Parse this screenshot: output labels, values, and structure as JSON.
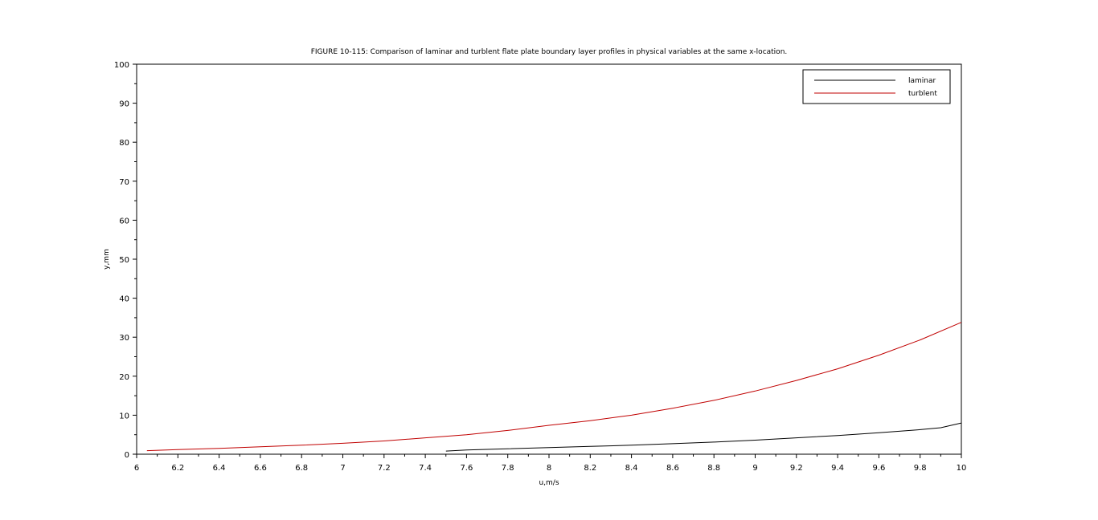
{
  "chart_data": {
    "type": "line",
    "title": "FIGURE 10-115: Comparison of laminar and turblent flate plate boundary layer profiles in physical variables at the same x-location.",
    "xlabel": "u,m/s",
    "ylabel": "y,mm",
    "xlim": [
      6,
      10
    ],
    "ylim": [
      0,
      100
    ],
    "x_ticks": [
      "6",
      "6.2",
      "6.4",
      "6.6",
      "6.8",
      "7",
      "7.2",
      "7.4",
      "7.6",
      "7.8",
      "8",
      "8.2",
      "8.4",
      "8.6",
      "8.8",
      "9",
      "9.2",
      "9.4",
      "9.6",
      "9.8",
      "10"
    ],
    "y_ticks": [
      "0",
      "10",
      "20",
      "30",
      "40",
      "50",
      "60",
      "70",
      "80",
      "90",
      "100"
    ],
    "grid": false,
    "legend_position": "top-right",
    "series": [
      {
        "name": "laminar",
        "color": "#000000",
        "x": [
          7.5,
          7.6,
          7.8,
          8.0,
          8.2,
          8.4,
          8.6,
          8.8,
          9.0,
          9.2,
          9.4,
          9.6,
          9.8,
          9.9,
          10.0
        ],
        "y": [
          0.8,
          1.1,
          1.4,
          1.7,
          2.0,
          2.3,
          2.7,
          3.1,
          3.6,
          4.2,
          4.8,
          5.5,
          6.3,
          6.8,
          8.0
        ]
      },
      {
        "name": "turblent",
        "color": "#c00000",
        "x": [
          6.05,
          6.2,
          6.4,
          6.6,
          6.8,
          7.0,
          7.2,
          7.4,
          7.6,
          7.8,
          8.0,
          8.2,
          8.4,
          8.6,
          8.8,
          9.0,
          9.2,
          9.4,
          9.6,
          9.8,
          10.0
        ],
        "y": [
          0.9,
          1.2,
          1.5,
          1.9,
          2.3,
          2.8,
          3.4,
          4.2,
          5.0,
          6.1,
          7.4,
          8.6,
          10.0,
          11.8,
          13.8,
          16.2,
          18.9,
          21.9,
          25.4,
          29.3,
          33.8
        ]
      }
    ]
  }
}
